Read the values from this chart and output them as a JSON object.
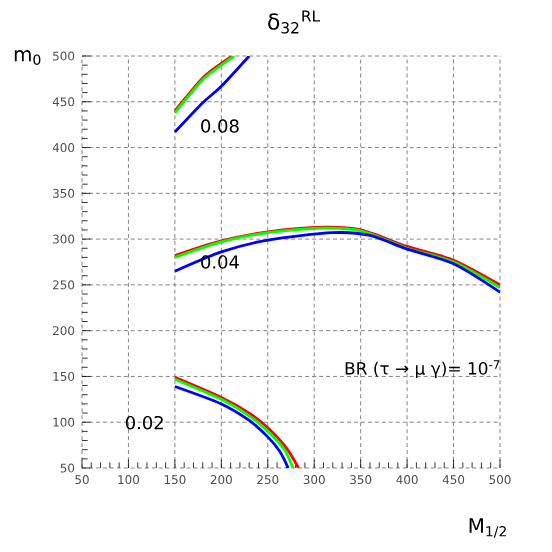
{
  "chart_data": {
    "type": "line",
    "title": "δ$_{32}$$^{RL}$",
    "xlabel": "M$_{1/2}$",
    "ylabel": "m$_{0}$",
    "xlim": [
      50,
      500
    ],
    "ylim": [
      50,
      500
    ],
    "xticks": [
      50,
      100,
      150,
      200,
      250,
      300,
      350,
      400,
      450,
      500
    ],
    "yticks": [
      50,
      100,
      150,
      200,
      250,
      300,
      350,
      400,
      450,
      500
    ],
    "grid": true,
    "marker": "none",
    "line_style": "solid",
    "series": [
      {
        "color": "#ff0000",
        "x": [
          150,
          180,
          200,
          212
        ],
        "values": [
          440,
          476,
          492,
          500
        ]
      },
      {
        "color": "#00ff00",
        "x": [
          150,
          180,
          200,
          214
        ],
        "values": [
          438,
          474,
          490,
          500
        ]
      },
      {
        "color": "#0000ff",
        "x": [
          150,
          180,
          200,
          230
        ],
        "values": [
          417,
          449,
          467,
          500
        ]
      },
      {
        "color": "#ff0000",
        "x": [
          150,
          200,
          250,
          310,
          350,
          400,
          450,
          500
        ],
        "values": [
          282,
          298,
          308,
          313,
          310,
          292,
          277,
          250
        ]
      },
      {
        "color": "#00ff00",
        "x": [
          150,
          200,
          250,
          310,
          350,
          400,
          450,
          500
        ],
        "values": [
          280,
          297,
          307,
          312,
          309,
          290,
          275,
          247
        ]
      },
      {
        "color": "#0000ff",
        "x": [
          150,
          200,
          250,
          320,
          360,
          400,
          450,
          500
        ],
        "values": [
          265,
          286,
          299,
          307,
          304,
          289,
          273,
          242
        ]
      },
      {
        "color": "#ff0000",
        "x": [
          150,
          200,
          230,
          250,
          270,
          283
        ],
        "values": [
          149,
          127,
          110,
          94,
          72,
          50
        ]
      },
      {
        "color": "#00ff00",
        "x": [
          150,
          200,
          230,
          250,
          268,
          277
        ],
        "values": [
          147,
          125,
          107,
          90,
          70,
          50
        ]
      },
      {
        "color": "#0000ff",
        "x": [
          150,
          200,
          230,
          250,
          263,
          272
        ],
        "values": [
          139,
          120,
          102,
          84,
          68,
          50
        ]
      }
    ],
    "annotations": [
      "0.08",
      "0.04",
      "0.02",
      "BR (τ → μ γ)= 10$^{-7}$"
    ]
  }
}
